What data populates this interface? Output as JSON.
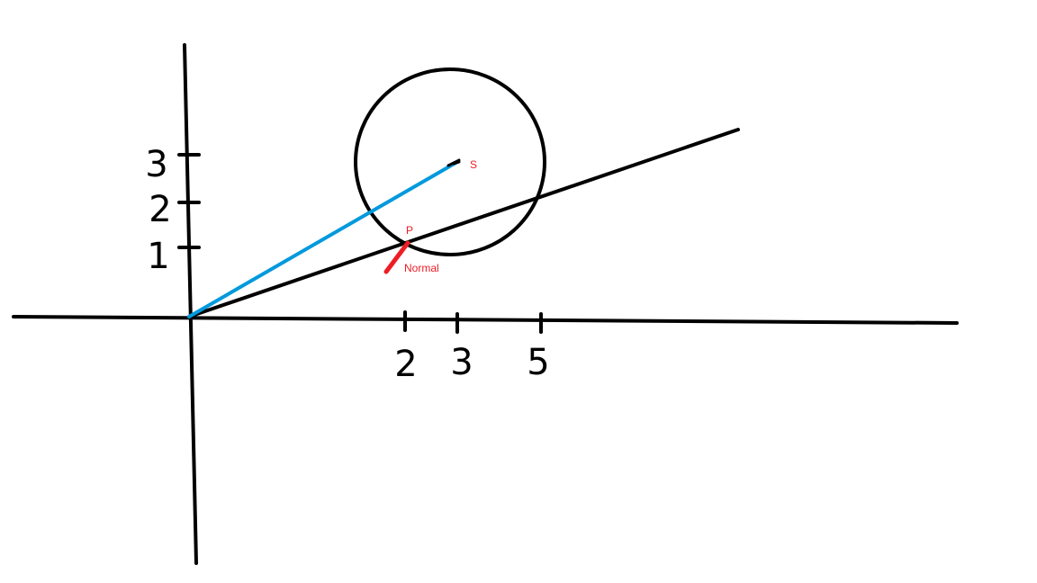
{
  "colors": {
    "background": "#ffffff",
    "ink": "#000000",
    "vector_to_center": "#0099dd",
    "normal": "#ee1c24",
    "label": "#ee1c24"
  },
  "axes": {
    "x_ticks": [
      "2",
      "3",
      "5"
    ],
    "y_ticks": [
      "1",
      "2",
      "3"
    ]
  },
  "labels": {
    "center": "S",
    "point": "P",
    "normal": "Normal"
  }
}
